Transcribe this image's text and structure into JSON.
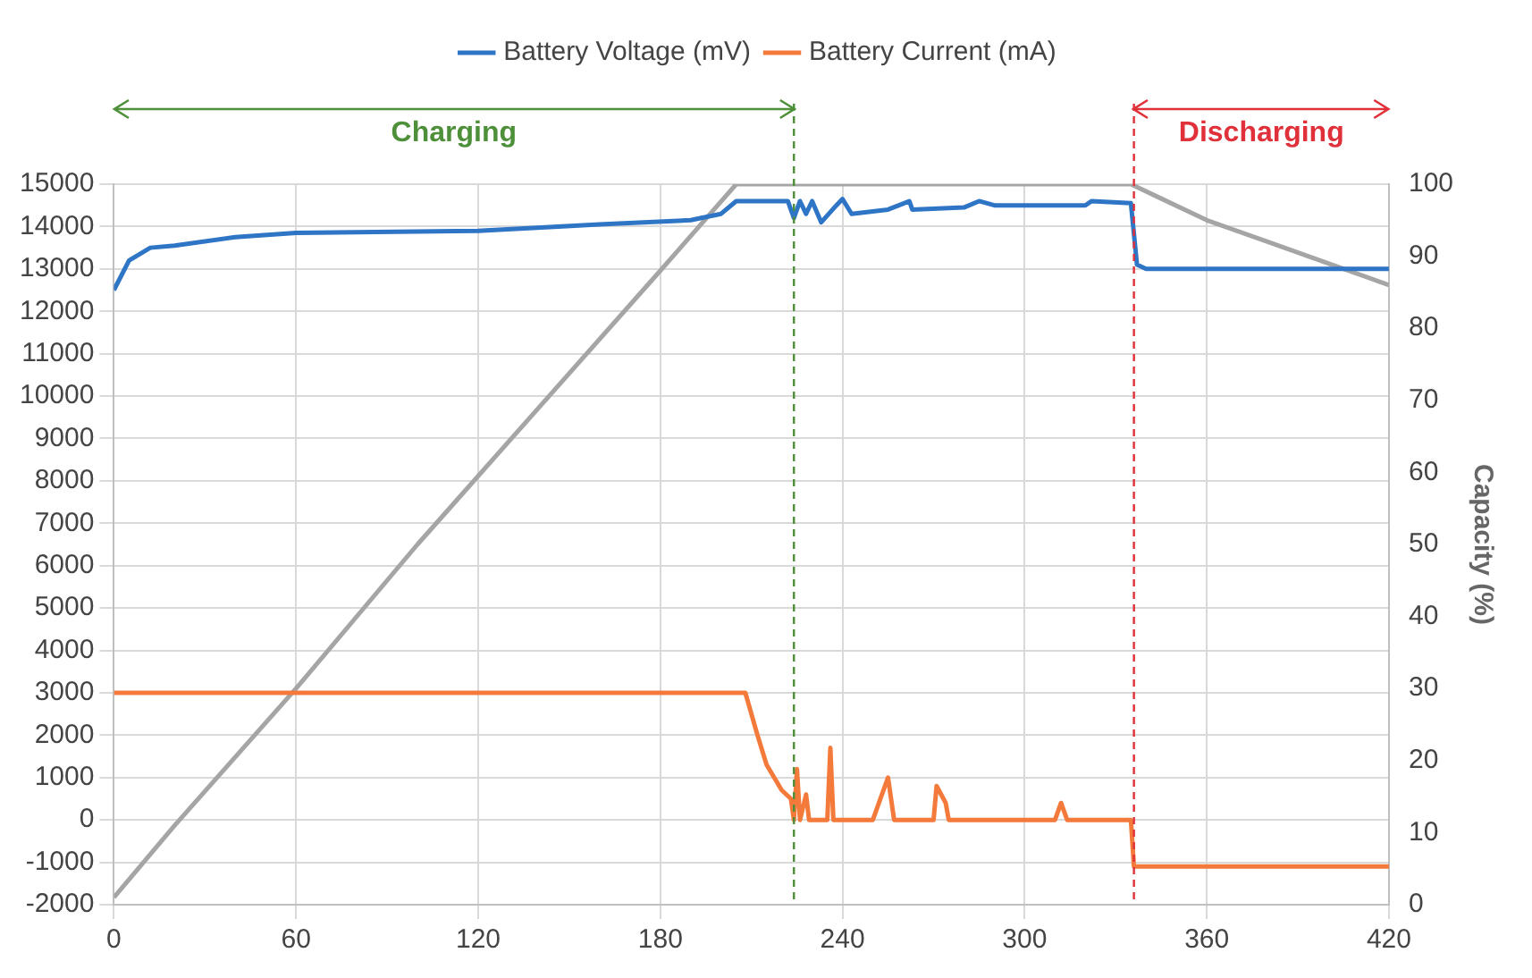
{
  "chart_data": {
    "type": "line",
    "y2label": "Capacity (%)",
    "legend": "top",
    "grid": true,
    "marker": "none",
    "xlim": [
      0,
      420
    ],
    "xticks": [
      0,
      60,
      120,
      180,
      240,
      300,
      360,
      420
    ],
    "ylim": [
      -2000,
      15000
    ],
    "yticks": [
      -2000,
      -1000,
      0,
      1000,
      2000,
      3000,
      4000,
      5000,
      6000,
      7000,
      8000,
      9000,
      10000,
      11000,
      12000,
      13000,
      14000,
      15000
    ],
    "y2lim": [
      0,
      100
    ],
    "y2ticks": [
      0,
      10,
      20,
      30,
      40,
      50,
      60,
      70,
      80,
      90,
      100
    ],
    "series": [
      {
        "name": "Battery Voltage (mV)",
        "color": "#2e75c6",
        "x": [
          0,
          5,
          12,
          20,
          40,
          60,
          120,
          160,
          190,
          200,
          205,
          222,
          224,
          226,
          228,
          230,
          233,
          238,
          240,
          243,
          255,
          262,
          263,
          280,
          285,
          290,
          320,
          322,
          335,
          337,
          340,
          420
        ],
        "values": [
          12500,
          13200,
          13500,
          13550,
          13750,
          13850,
          13900,
          14050,
          14150,
          14300,
          14600,
          14600,
          14200,
          14600,
          14300,
          14600,
          14100,
          14500,
          14650,
          14300,
          14400,
          14600,
          14400,
          14450,
          14600,
          14500,
          14500,
          14600,
          14550,
          13100,
          13000,
          13000
        ]
      },
      {
        "name": "Battery Current (mA)",
        "color": "#f47a3c",
        "x": [
          0,
          208,
          212,
          215,
          220,
          223,
          224,
          225,
          226,
          228,
          229,
          235,
          236,
          237,
          250,
          252,
          255,
          257,
          270,
          271,
          274,
          275,
          310,
          312,
          314,
          335,
          336,
          420
        ],
        "values": [
          3000,
          3000,
          2000,
          1300,
          700,
          500,
          0,
          1200,
          0,
          600,
          0,
          0,
          1700,
          0,
          0,
          400,
          1000,
          0,
          0,
          800,
          400,
          0,
          0,
          400,
          0,
          0,
          -1100,
          -1100
        ]
      },
      {
        "color": "#a5a5a5",
        "axis": "y2",
        "x": [
          0,
          20,
          60,
          100,
          140,
          180,
          205,
          335,
          345,
          360,
          380,
          400,
          420
        ],
        "values": [
          1,
          11,
          30,
          50,
          69,
          88,
          100,
          100,
          98,
          95,
          92,
          89,
          86
        ]
      }
    ],
    "ref_lines": [
      {
        "axis": "x",
        "value": 224,
        "color": "#4e8f3a",
        "line_style": "dashed"
      },
      {
        "axis": "x",
        "value": 336,
        "color": "#e0303a",
        "line_style": "dashed"
      }
    ],
    "annotations": [
      "Charging",
      "Discharging"
    ]
  }
}
